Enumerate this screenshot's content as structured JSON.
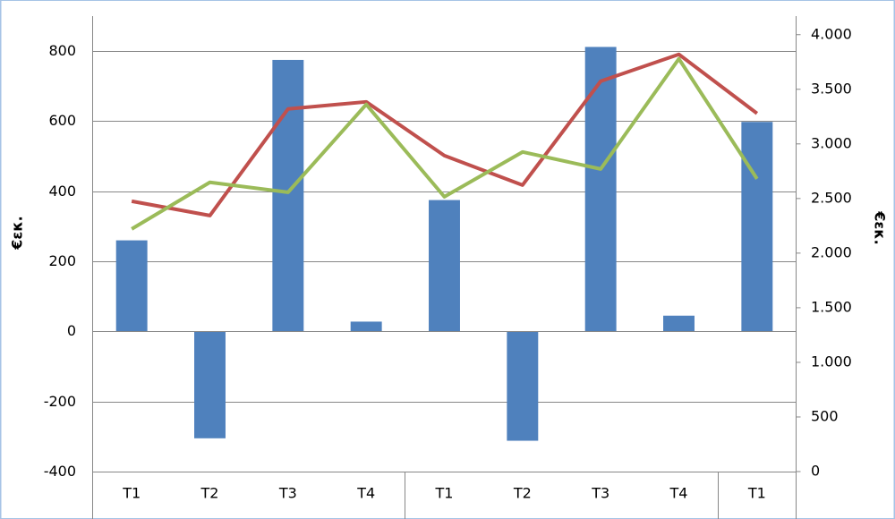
{
  "chart_data": {
    "type": "bar",
    "categories": [
      "T1",
      "T2",
      "T3",
      "T4",
      "T1",
      "T2",
      "T3",
      "T4",
      "T1"
    ],
    "values": [
      260,
      -305,
      775,
      28,
      375,
      -312,
      812,
      45,
      598
    ],
    "color": "#4f81bd",
    "ylabel": "€εκ.",
    "y2label": "€εκ.",
    "ylim": [
      -400,
      900
    ],
    "yticks": [
      -400,
      -200,
      0,
      200,
      400,
      600,
      800
    ],
    "y2lim": [
      0,
      4170
    ],
    "y2ticks": [
      0,
      500,
      {
        "value": 1000,
        "label": "1.000"
      },
      {
        "value": 1500,
        "label": "1.500"
      },
      {
        "value": 2000,
        "label": "2.000"
      },
      {
        "value": 2500,
        "label": "2.500"
      },
      {
        "value": 3000,
        "label": "3.000"
      },
      {
        "value": 3500,
        "label": "3.500"
      },
      {
        "value": 4000,
        "label": "4.000"
      }
    ],
    "grid": true,
    "series": [
      {
        "type": "line",
        "axis": "y2",
        "color": "#c0504d",
        "values": [
          2475,
          2344,
          3320,
          3385,
          2893,
          2623,
          3574,
          3820,
          3279
        ]
      },
      {
        "type": "line",
        "axis": "y2",
        "color": "#9bbb59",
        "values": [
          2221,
          2648,
          2557,
          3361,
          2516,
          2926,
          2770,
          3779,
          2680
        ]
      }
    ]
  }
}
